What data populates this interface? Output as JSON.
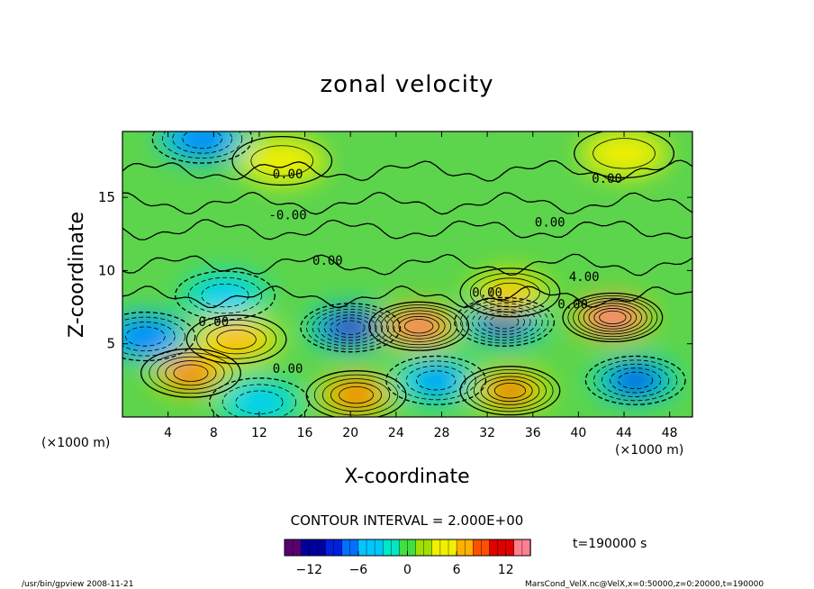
{
  "chart_data": {
    "type": "heatmap",
    "title": "zonal velocity",
    "xlabel": "X-coordinate",
    "ylabel": "Z-coordinate",
    "x_unit_left": "(×1000 m)",
    "x_unit_right": "(×1000 m)",
    "xlim": [
      0,
      50
    ],
    "ylim": [
      0,
      19.5
    ],
    "x_ticks": [
      4,
      8,
      12,
      16,
      20,
      24,
      28,
      32,
      36,
      40,
      44,
      48
    ],
    "y_ticks": [
      5,
      10,
      15
    ],
    "grid": false,
    "contour_interval_text": "CONTOUR INTERVAL = 2.000E+00",
    "time_text": "t=190000 s",
    "colorbar": {
      "min": -15,
      "max": 15,
      "ticks": [
        -12,
        -6,
        0,
        6,
        12
      ],
      "colors": [
        "#5a0070",
        "#0000a0",
        "#0020e0",
        "#0070ff",
        "#00c8ff",
        "#00e6c8",
        "#40e040",
        "#a0e000",
        "#f0f000",
        "#ffb000",
        "#ff5000",
        "#e00000",
        "#ff8090"
      ]
    },
    "contour_labels": [
      {
        "x": 14.5,
        "z": 16.3,
        "text": "0.00"
      },
      {
        "x": 42.5,
        "z": 16.0,
        "text": "0.00"
      },
      {
        "x": 14.5,
        "z": 13.5,
        "text": "-0.00"
      },
      {
        "x": 37.5,
        "z": 13.0,
        "text": "0.00"
      },
      {
        "x": 18.0,
        "z": 10.4,
        "text": "0.00"
      },
      {
        "x": 40.5,
        "z": 9.3,
        "text": "4.00"
      },
      {
        "x": 32.0,
        "z": 8.2,
        "text": "0.00"
      },
      {
        "x": 39.5,
        "z": 7.4,
        "text": "0.00"
      },
      {
        "x": 8.0,
        "z": 6.2,
        "text": "0.00"
      },
      {
        "x": 14.5,
        "z": 3.0,
        "text": "0.00"
      }
    ],
    "extrema": [
      {
        "x": 7,
        "z": 19,
        "value": -7
      },
      {
        "x": 14,
        "z": 17.5,
        "value": 4
      },
      {
        "x": 44,
        "z": 18,
        "value": 4
      },
      {
        "x": 20,
        "z": 6.1,
        "value": -13
      },
      {
        "x": 26,
        "z": 6.2,
        "value": 13
      },
      {
        "x": 33.5,
        "z": 6.5,
        "value": -14
      },
      {
        "x": 43,
        "z": 6.8,
        "value": 16
      },
      {
        "x": 6,
        "z": 3.0,
        "value": 9
      },
      {
        "x": 10,
        "z": 5.3,
        "value": 7
      },
      {
        "x": 2,
        "z": 5.5,
        "value": -7
      },
      {
        "x": 20.5,
        "z": 1.5,
        "value": 9
      },
      {
        "x": 27.5,
        "z": 2.5,
        "value": -8
      },
      {
        "x": 34,
        "z": 1.8,
        "value": 11
      },
      {
        "x": 45,
        "z": 2.5,
        "value": -10
      },
      {
        "x": 12,
        "z": 1.0,
        "value": -5
      },
      {
        "x": 34,
        "z": 8.5,
        "value": 8
      },
      {
        "x": 9,
        "z": 8.3,
        "value": -5
      }
    ]
  },
  "footer": {
    "left_text": "/usr/bin/gpview  2008-11-21",
    "right_text": "MarsCond_VelX.nc@VelX,x=0:50000,z=0:20000,t=190000"
  }
}
